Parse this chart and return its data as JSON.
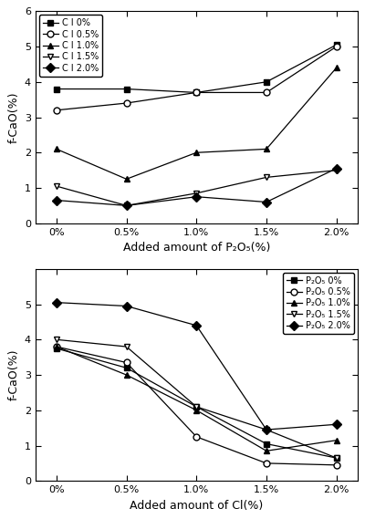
{
  "x_labels": [
    "0%",
    "0.5%",
    "1.0%",
    "1.5%",
    "2.0%"
  ],
  "x_vals": [
    0,
    1,
    2,
    3,
    4
  ],
  "top_chart": {
    "xlabel": "Added amount of P₂O₅(%)",
    "ylabel": "f-CaO(%)",
    "ylim": [
      0,
      6
    ],
    "yticks": [
      0,
      1,
      2,
      3,
      4,
      5,
      6
    ],
    "legend_loc": "upper left",
    "series": [
      {
        "label": "C l 0%",
        "marker": "s",
        "filled": true,
        "values": [
          3.8,
          3.8,
          3.7,
          4.0,
          5.05
        ]
      },
      {
        "label": "C l 0.5%",
        "marker": "o",
        "filled": false,
        "values": [
          3.2,
          3.4,
          3.7,
          3.7,
          5.0
        ]
      },
      {
        "label": "C l 1.0%",
        "marker": "^",
        "filled": true,
        "values": [
          2.1,
          1.25,
          2.0,
          2.1,
          4.4
        ]
      },
      {
        "label": "C l 1.5%",
        "marker": "v",
        "filled": false,
        "values": [
          1.05,
          0.5,
          0.85,
          1.3,
          1.5
        ]
      },
      {
        "label": "C l 2.0%",
        "marker": "D",
        "filled": true,
        "values": [
          0.65,
          0.5,
          0.75,
          0.6,
          1.55
        ]
      }
    ]
  },
  "bottom_chart": {
    "xlabel": "Added amount of Cl(%)",
    "ylabel": "f-CaO(%)",
    "ylim": [
      0,
      6
    ],
    "yticks": [
      0,
      1,
      2,
      3,
      4,
      5
    ],
    "legend_loc": "upper right",
    "series": [
      {
        "label": "P₂O₅ 0%",
        "marker": "s",
        "filled": true,
        "values": [
          3.75,
          3.2,
          2.1,
          1.05,
          0.65
        ]
      },
      {
        "label": "P₂O₅ 0.5%",
        "marker": "o",
        "filled": false,
        "values": [
          3.8,
          3.35,
          1.25,
          0.5,
          0.45
        ]
      },
      {
        "label": "P₂O₅ 1.0%",
        "marker": "^",
        "filled": true,
        "values": [
          3.8,
          3.0,
          2.0,
          0.85,
          1.15
        ]
      },
      {
        "label": "P₂O₅ 1.5%",
        "marker": "v",
        "filled": false,
        "values": [
          4.0,
          3.8,
          2.1,
          1.45,
          0.65
        ]
      },
      {
        "label": "P₂O₅ 2.0%",
        "marker": "D",
        "filled": true,
        "values": [
          5.05,
          4.95,
          4.4,
          1.45,
          1.6
        ]
      }
    ]
  }
}
